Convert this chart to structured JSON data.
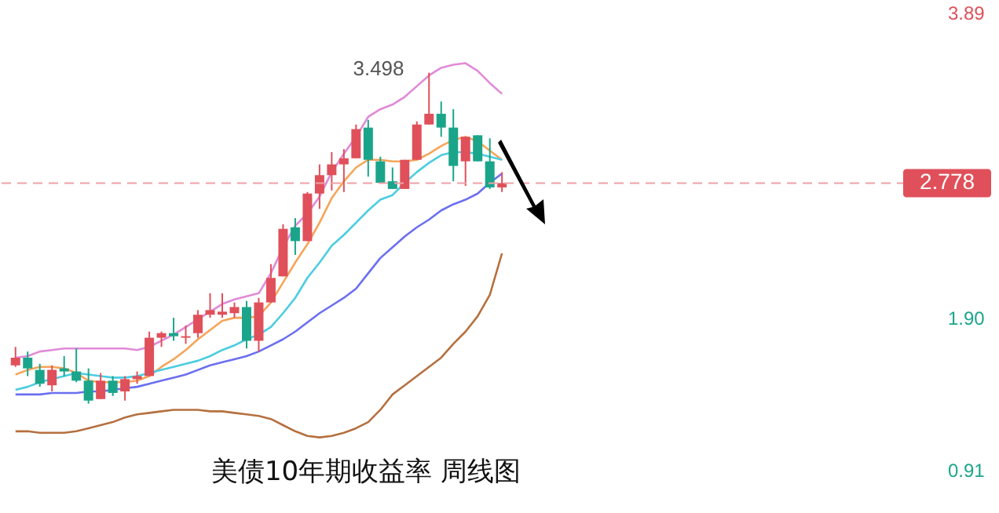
{
  "chart_data": {
    "type": "candlestick",
    "categories": [
      null,
      null,
      null,
      null,
      null,
      null,
      null,
      null,
      null,
      null,
      null,
      null,
      null,
      null,
      null,
      null,
      null,
      null,
      null,
      null,
      null,
      null,
      null,
      null,
      null,
      null,
      null,
      null,
      null,
      null,
      null,
      null,
      null,
      null,
      null,
      null,
      null,
      null,
      null,
      null,
      null
    ],
    "ohlc": [
      [
        1.59,
        1.71,
        1.58,
        1.64
      ],
      [
        1.64,
        1.68,
        1.52,
        1.57
      ],
      [
        1.56,
        1.6,
        1.45,
        1.47
      ],
      [
        1.46,
        1.59,
        1.42,
        1.56
      ],
      [
        1.57,
        1.65,
        1.52,
        1.55
      ],
      [
        1.55,
        1.7,
        1.48,
        1.49
      ],
      [
        1.49,
        1.57,
        1.34,
        1.36
      ],
      [
        1.37,
        1.54,
        1.37,
        1.49
      ],
      [
        1.49,
        1.52,
        1.39,
        1.41
      ],
      [
        1.42,
        1.52,
        1.36,
        1.5
      ],
      [
        1.5,
        1.55,
        1.47,
        1.52
      ],
      [
        1.52,
        1.81,
        1.52,
        1.77
      ],
      [
        1.77,
        1.81,
        1.71,
        1.8
      ],
      [
        1.8,
        1.9,
        1.75,
        1.78
      ],
      [
        1.77,
        1.85,
        1.73,
        1.78
      ],
      [
        1.8,
        1.95,
        1.77,
        1.92
      ],
      [
        1.92,
        2.06,
        1.9,
        1.95
      ],
      [
        1.92,
        2.06,
        1.9,
        1.94
      ],
      [
        1.93,
        2.0,
        1.9,
        1.97
      ],
      [
        1.97,
        2.01,
        1.7,
        1.75
      ],
      [
        1.75,
        2.03,
        1.68,
        2.0
      ],
      [
        2.0,
        2.25,
        2.0,
        2.16
      ],
      [
        2.17,
        2.51,
        2.17,
        2.48
      ],
      [
        2.49,
        2.55,
        2.31,
        2.4
      ],
      [
        2.4,
        2.72,
        2.4,
        2.71
      ],
      [
        2.71,
        2.9,
        2.61,
        2.83
      ],
      [
        2.83,
        2.98,
        2.73,
        2.9
      ],
      [
        2.9,
        3.0,
        2.72,
        2.94
      ],
      [
        2.94,
        3.16,
        2.94,
        3.13
      ],
      [
        3.14,
        3.19,
        2.82,
        2.93
      ],
      [
        2.92,
        2.95,
        2.78,
        2.78
      ],
      [
        2.79,
        2.88,
        2.74,
        2.74
      ],
      [
        2.74,
        2.93,
        2.74,
        2.93
      ],
      [
        2.93,
        3.18,
        2.93,
        3.16
      ],
      [
        3.16,
        3.498,
        3.16,
        3.23
      ],
      [
        3.23,
        3.31,
        3.08,
        3.14
      ],
      [
        3.14,
        3.26,
        2.79,
        2.89
      ],
      [
        2.92,
        3.08,
        2.76,
        3.08
      ],
      [
        3.09,
        3.09,
        2.92,
        2.92
      ],
      [
        2.92,
        3.07,
        2.74,
        2.75
      ],
      [
        2.75,
        2.85,
        2.72,
        2.778
      ]
    ],
    "colors": [
      "#e0505a",
      "#1aa58a",
      "#1aa58a",
      "#e0505a",
      "#1aa58a",
      "#1aa58a",
      "#1aa58a",
      "#e0505a",
      "#1aa58a",
      "#e0505a",
      "#e0505a",
      "#e0505a",
      "#e0505a",
      "#1aa58a",
      "#e0505a",
      "#e0505a",
      "#e0505a",
      "#e0505a",
      "#e0505a",
      "#1aa58a",
      "#e0505a",
      "#e0505a",
      "#e0505a",
      "#1aa58a",
      "#e0505a",
      "#e0505a",
      "#e0505a",
      "#e0505a",
      "#e0505a",
      "#1aa58a",
      "#1aa58a",
      "#1aa58a",
      "#e0505a",
      "#e0505a",
      "#e0505a",
      "#1aa58a",
      "#1aa58a",
      "#e0505a",
      "#1aa58a",
      "#1aa58a",
      "#e0505a"
    ],
    "series": [
      {
        "type": "line",
        "color": "#e08ad8",
        "values": [
          1.64,
          1.65,
          1.68,
          1.69,
          1.7,
          1.7,
          1.7,
          1.7,
          1.7,
          1.7,
          1.69,
          1.71,
          1.75,
          1.79,
          1.84,
          1.89,
          1.94,
          1.99,
          2.02,
          2.04,
          2.06,
          2.19,
          2.36,
          2.5,
          2.58,
          2.69,
          2.85,
          2.97,
          3.08,
          3.21,
          3.26,
          3.29,
          3.34,
          3.41,
          3.48,
          3.53,
          3.55,
          3.56,
          3.51,
          3.43,
          3.36
        ]
      },
      {
        "type": "line",
        "color": "#f5a55a",
        "values": [
          1.53,
          1.56,
          1.58,
          1.58,
          1.57,
          1.54,
          1.49,
          1.48,
          1.48,
          1.48,
          1.49,
          1.52,
          1.58,
          1.63,
          1.69,
          1.76,
          1.82,
          1.88,
          1.9,
          1.9,
          1.91,
          2.0,
          2.13,
          2.26,
          2.38,
          2.52,
          2.68,
          2.79,
          2.88,
          2.93,
          2.93,
          2.92,
          2.92,
          2.93,
          2.97,
          3.02,
          3.06,
          3.08,
          3.05,
          2.99,
          2.93
        ]
      },
      {
        "type": "line",
        "color": "#4ccde0",
        "values": [
          1.43,
          1.45,
          1.48,
          1.5,
          1.52,
          1.54,
          1.53,
          1.52,
          1.51,
          1.51,
          1.52,
          1.54,
          1.56,
          1.58,
          1.6,
          1.62,
          1.65,
          1.69,
          1.72,
          1.76,
          1.79,
          1.84,
          1.93,
          2.03,
          2.16,
          2.26,
          2.37,
          2.44,
          2.52,
          2.6,
          2.67,
          2.7,
          2.78,
          2.85,
          2.91,
          2.96,
          2.98,
          2.98,
          2.97,
          2.95,
          2.93
        ]
      },
      {
        "type": "line",
        "color": "#6b6ff0",
        "values": [
          1.4,
          1.4,
          1.4,
          1.41,
          1.41,
          1.41,
          1.42,
          1.42,
          1.43,
          1.44,
          1.45,
          1.47,
          1.49,
          1.51,
          1.53,
          1.56,
          1.59,
          1.61,
          1.63,
          1.65,
          1.68,
          1.72,
          1.76,
          1.81,
          1.87,
          1.93,
          1.98,
          2.03,
          2.09,
          2.19,
          2.29,
          2.36,
          2.43,
          2.49,
          2.54,
          2.6,
          2.64,
          2.67,
          2.71,
          2.78,
          2.84
        ]
      },
      {
        "type": "line",
        "color": "#b5703f",
        "values": [
          1.16,
          1.16,
          1.15,
          1.15,
          1.15,
          1.16,
          1.18,
          1.2,
          1.22,
          1.25,
          1.27,
          1.28,
          1.29,
          1.3,
          1.3,
          1.3,
          1.29,
          1.29,
          1.28,
          1.27,
          1.26,
          1.24,
          1.2,
          1.16,
          1.13,
          1.12,
          1.13,
          1.15,
          1.18,
          1.22,
          1.3,
          1.4,
          1.46,
          1.52,
          1.58,
          1.64,
          1.73,
          1.81,
          1.91,
          2.05,
          2.32
        ]
      }
    ],
    "ylim": [
      0.75,
      3.89
    ],
    "yticks": [
      3.89,
      {
        "value": 1.9,
        "label": "1.90"
      },
      0.91
    ],
    "ref_lines": [
      {
        "axis": "y",
        "value": 2.778,
        "label": "2.778",
        "color": "#f0a0a8",
        "line_style": "dashed"
      }
    ],
    "annotations": [
      "3.498",
      "美债10年期收益率  周线图"
    ],
    "grid": false,
    "legend": false,
    "marker": "none",
    "line_style": "solid"
  }
}
